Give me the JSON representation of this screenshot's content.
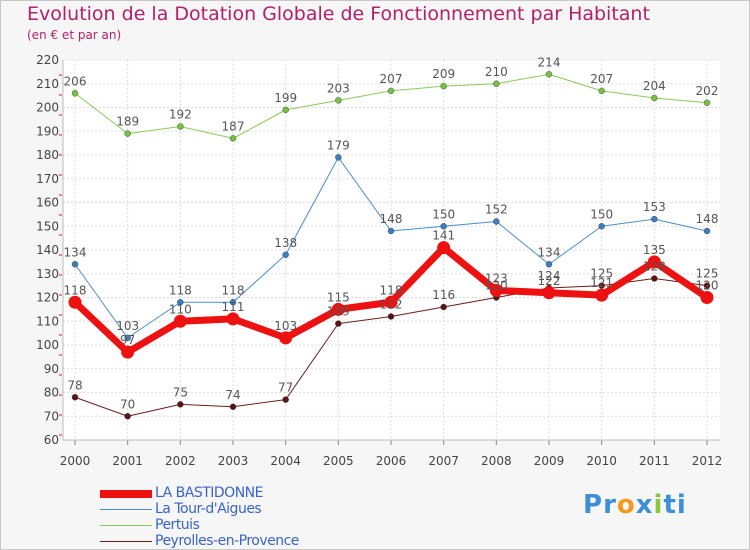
{
  "title": "Evolution de la Dotation Globale de Fonctionnement par Habitant",
  "subtitle": "(en € et par an)",
  "logo": {
    "text": "Proxiti",
    "letters": [
      "P",
      "r",
      "o",
      "x",
      "i",
      "t",
      "i"
    ],
    "colors": [
      "#3a8fd6",
      "#3a8fd6",
      "#f39a1c",
      "#3a8fd6",
      "#8cc63f",
      "#3a8fd6",
      "#3a8fd6"
    ]
  },
  "chart_data": {
    "type": "line",
    "title": "Evolution de la Dotation Globale de Fonctionnement par Habitant",
    "ylabel": "(en € et par an)",
    "xlabel": "",
    "x": [
      "2000",
      "2001",
      "2002",
      "2003",
      "2004",
      "2005",
      "2006",
      "2007",
      "2008",
      "2009",
      "2010",
      "2011",
      "2012"
    ],
    "ylim": [
      60,
      220
    ],
    "yticks": [
      60,
      70,
      80,
      90,
      100,
      110,
      120,
      130,
      140,
      150,
      160,
      170,
      180,
      190,
      200,
      210,
      220
    ],
    "grid": true,
    "legend_position": "bottom-left",
    "series": [
      {
        "name": "LA BASTIDONNE",
        "color": "#ee1111",
        "values": [
          118,
          97,
          110,
          111,
          103,
          115,
          118,
          141,
          123,
          122,
          121,
          135,
          120
        ],
        "labels": [
          "118",
          "97",
          "110",
          "111",
          "103",
          "115",
          "118",
          "141",
          "123",
          "122",
          "121",
          "135",
          "120"
        ]
      },
      {
        "name": "La Tour-d'Aigues",
        "color": "#4a8ecf",
        "values": [
          134,
          103,
          118,
          118,
          138,
          179,
          148,
          150,
          152,
          134,
          150,
          153,
          148
        ],
        "labels": [
          "134",
          "103",
          "118",
          "118",
          "138",
          "179",
          "148",
          "150",
          "152",
          "134",
          "150",
          "153",
          "148"
        ]
      },
      {
        "name": "Pertuis",
        "color": "#88cc55",
        "values": [
          206,
          189,
          192,
          187,
          199,
          203,
          207,
          209,
          210,
          214,
          207,
          204,
          202
        ],
        "labels": [
          "206",
          "189",
          "192",
          "187",
          "199",
          "203",
          "207",
          "209",
          "210",
          "214",
          "207",
          "204",
          "202"
        ]
      },
      {
        "name": "Peyrolles-en-Provence",
        "color": "#6b1d1d",
        "values": [
          78,
          70,
          75,
          74,
          77,
          109,
          112,
          116,
          120,
          124,
          125,
          128,
          125
        ],
        "labels": [
          "78",
          "70",
          "75",
          "74",
          "77",
          "109",
          "112",
          "116",
          "120",
          "124",
          "125",
          "128",
          "125"
        ]
      }
    ]
  }
}
